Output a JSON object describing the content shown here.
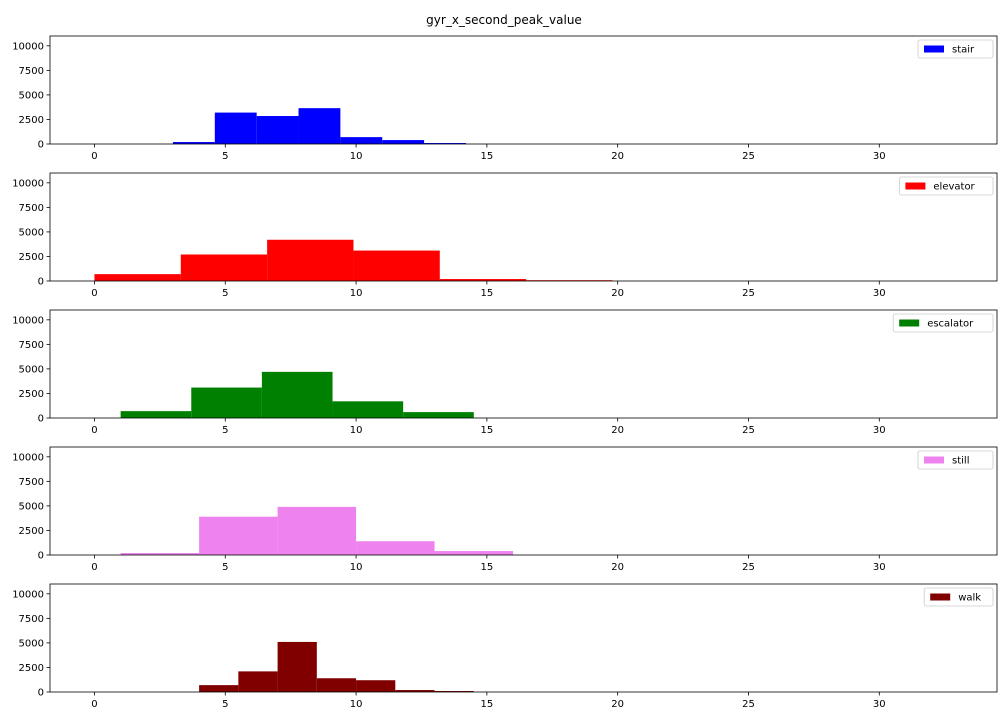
{
  "figure": {
    "title": "gyr_x_second_peak_value"
  },
  "chart_data": [
    {
      "type": "histogram",
      "series_name": "stair",
      "color": "#0000ff",
      "legend_position": "top-right",
      "xlim": [
        -1.7,
        34.5
      ],
      "ylim": [
        0,
        11000
      ],
      "xticks": [
        0,
        5,
        10,
        15,
        20,
        25,
        30
      ],
      "yticks": [
        0,
        2500,
        5000,
        7500,
        10000
      ],
      "bins": [
        {
          "x0": 3.0,
          "x1": 4.6,
          "count": 200
        },
        {
          "x0": 4.6,
          "x1": 6.2,
          "count": 3200
        },
        {
          "x0": 6.2,
          "x1": 7.8,
          "count": 2850
        },
        {
          "x0": 7.8,
          "x1": 9.4,
          "count": 3650
        },
        {
          "x0": 9.4,
          "x1": 11.0,
          "count": 700
        },
        {
          "x0": 11.0,
          "x1": 12.6,
          "count": 400
        },
        {
          "x0": 12.6,
          "x1": 14.2,
          "count": 100
        }
      ]
    },
    {
      "type": "histogram",
      "series_name": "elevator",
      "color": "#ff0000",
      "legend_position": "top-right",
      "xlim": [
        -1.7,
        34.5
      ],
      "ylim": [
        0,
        11000
      ],
      "xticks": [
        0,
        5,
        10,
        15,
        20,
        25,
        30
      ],
      "yticks": [
        0,
        2500,
        5000,
        7500,
        10000
      ],
      "bins": [
        {
          "x0": 0.0,
          "x1": 3.3,
          "count": 700
        },
        {
          "x0": 3.3,
          "x1": 6.6,
          "count": 2700
        },
        {
          "x0": 6.6,
          "x1": 9.9,
          "count": 4200
        },
        {
          "x0": 9.9,
          "x1": 13.2,
          "count": 3100
        },
        {
          "x0": 13.2,
          "x1": 16.5,
          "count": 200
        },
        {
          "x0": 16.5,
          "x1": 19.8,
          "count": 80
        }
      ]
    },
    {
      "type": "histogram",
      "series_name": "escalator",
      "color": "#008000",
      "legend_position": "top-right",
      "xlim": [
        -1.7,
        34.5
      ],
      "ylim": [
        0,
        11000
      ],
      "xticks": [
        0,
        5,
        10,
        15,
        20,
        25,
        30
      ],
      "yticks": [
        0,
        2500,
        5000,
        7500,
        10000
      ],
      "bins": [
        {
          "x0": 1.0,
          "x1": 3.7,
          "count": 700
        },
        {
          "x0": 3.7,
          "x1": 6.4,
          "count": 3100
        },
        {
          "x0": 6.4,
          "x1": 9.1,
          "count": 4700
        },
        {
          "x0": 9.1,
          "x1": 11.8,
          "count": 1700
        },
        {
          "x0": 11.8,
          "x1": 14.5,
          "count": 600
        }
      ]
    },
    {
      "type": "histogram",
      "series_name": "still",
      "color": "#ee82ee",
      "legend_position": "top-right",
      "xlim": [
        -1.7,
        34.5
      ],
      "ylim": [
        0,
        11000
      ],
      "xticks": [
        0,
        5,
        10,
        15,
        20,
        25,
        30
      ],
      "yticks": [
        0,
        2500,
        5000,
        7500,
        10000
      ],
      "bins": [
        {
          "x0": 1.0,
          "x1": 4.0,
          "count": 200
        },
        {
          "x0": 4.0,
          "x1": 7.0,
          "count": 3900
        },
        {
          "x0": 7.0,
          "x1": 10.0,
          "count": 4900
        },
        {
          "x0": 10.0,
          "x1": 13.0,
          "count": 1400
        },
        {
          "x0": 13.0,
          "x1": 16.0,
          "count": 400
        }
      ]
    },
    {
      "type": "histogram",
      "series_name": "walk",
      "color": "#800000",
      "legend_position": "top-right",
      "xlim": [
        -1.7,
        34.5
      ],
      "ylim": [
        0,
        11000
      ],
      "xticks": [
        0,
        5,
        10,
        15,
        20,
        25,
        30
      ],
      "yticks": [
        0,
        2500,
        5000,
        7500,
        10000
      ],
      "bins": [
        {
          "x0": 4.0,
          "x1": 5.5,
          "count": 700
        },
        {
          "x0": 5.5,
          "x1": 7.0,
          "count": 2100
        },
        {
          "x0": 7.0,
          "x1": 8.5,
          "count": 5100
        },
        {
          "x0": 8.5,
          "x1": 10.0,
          "count": 1400
        },
        {
          "x0": 10.0,
          "x1": 11.5,
          "count": 1200
        },
        {
          "x0": 11.5,
          "x1": 13.0,
          "count": 200
        },
        {
          "x0": 13.0,
          "x1": 14.5,
          "count": 100
        }
      ]
    }
  ]
}
